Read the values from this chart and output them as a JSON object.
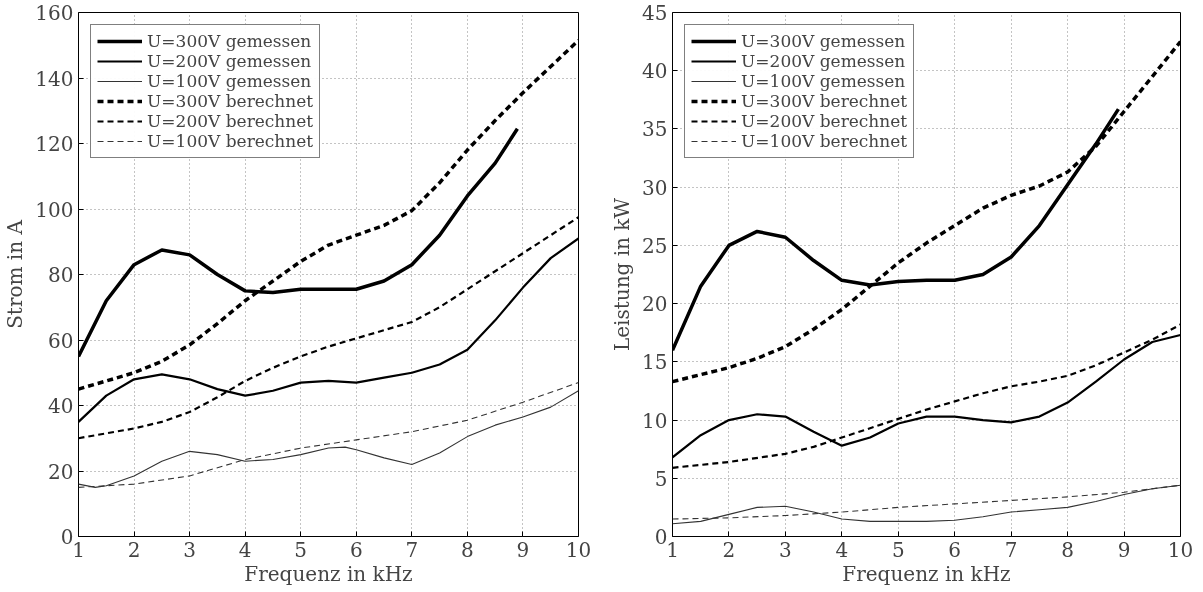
{
  "chart_data": [
    {
      "type": "line",
      "xlabel": "Frequenz in kHz",
      "ylabel": "Strom in A",
      "xlim": [
        1,
        10
      ],
      "ylim": [
        0,
        160
      ],
      "xticks": [
        1,
        2,
        3,
        4,
        5,
        6,
        7,
        8,
        9,
        10
      ],
      "yticks": [
        0,
        20,
        40,
        60,
        80,
        100,
        120,
        140,
        160
      ],
      "grid": true,
      "legend": "top left",
      "marker": "none",
      "series": [
        {
          "name": "U=300V gemessen",
          "color": "#000000",
          "line_style": "solid",
          "x": [
            1,
            1.5,
            2,
            2.5,
            3,
            3.5,
            4,
            4.5,
            5,
            5.5,
            6,
            6.5,
            7,
            7.5,
            8,
            8.5,
            8.9
          ],
          "values": [
            55,
            72,
            83,
            87.5,
            86,
            80,
            75,
            74.5,
            75.5,
            75.5,
            75.5,
            78,
            83,
            92,
            104,
            114,
            124.5
          ]
        },
        {
          "name": "U=200V gemessen",
          "color": "#000000",
          "line_style": "solid",
          "x": [
            1,
            1.5,
            2,
            2.5,
            3,
            3.5,
            4,
            4.5,
            5,
            5.5,
            6,
            6.5,
            7,
            7.5,
            8,
            8.5,
            9,
            9.5,
            10
          ],
          "values": [
            35,
            43,
            48,
            49.5,
            48,
            45,
            43,
            44.5,
            47,
            47.5,
            47,
            48.5,
            50,
            52.5,
            57,
            66,
            76,
            85,
            91
          ]
        },
        {
          "name": "U=100V gemessen",
          "color": "#333333",
          "line_style": "solid",
          "x": [
            1,
            1.3,
            1.5,
            2,
            2.5,
            3,
            3.5,
            4,
            4.5,
            5,
            5.5,
            5.8,
            6,
            6.5,
            7,
            7.5,
            8,
            8.5,
            9,
            9.5,
            10
          ],
          "values": [
            16,
            15,
            15.5,
            18.5,
            23,
            26,
            25,
            23,
            23.5,
            25,
            27,
            27.3,
            26.5,
            24,
            22,
            25.5,
            30.5,
            34,
            36.5,
            39.5,
            44.5
          ]
        },
        {
          "name": "U=300V berechnet",
          "color": "#000000",
          "line_style": "dashed",
          "x": [
            1,
            1.5,
            2,
            2.5,
            3,
            3.5,
            4,
            4.5,
            5,
            5.5,
            6,
            6.5,
            7,
            7.5,
            8,
            8.5,
            9,
            9.5,
            10
          ],
          "values": [
            45,
            47.5,
            50,
            53.5,
            58.5,
            65,
            72,
            78,
            84,
            89,
            92,
            95,
            99.5,
            108,
            118,
            127,
            135.5,
            143.5,
            151.5
          ]
        },
        {
          "name": "U=200V berechnet",
          "color": "#000000",
          "line_style": "dashed",
          "x": [
            1,
            1.5,
            2,
            2.5,
            3,
            3.5,
            4,
            4.5,
            5,
            5.5,
            6,
            6.5,
            7,
            7.5,
            8,
            8.5,
            9,
            9.5,
            10
          ],
          "values": [
            30,
            31.5,
            33,
            35,
            38,
            42.5,
            47.5,
            51.5,
            55,
            58,
            60.5,
            63,
            65.5,
            70,
            75.5,
            81,
            86.5,
            92,
            97.5
          ]
        },
        {
          "name": "U=100V berechnet",
          "color": "#333333",
          "line_style": "dashed",
          "x": [
            1,
            2,
            3,
            4,
            5,
            6,
            7,
            8,
            9,
            10
          ],
          "values": [
            15,
            16,
            18.5,
            23.5,
            27,
            29.5,
            32,
            35.5,
            41,
            47
          ]
        }
      ]
    },
    {
      "type": "line",
      "xlabel": "Frequenz in kHz",
      "ylabel": "Leistung in kW",
      "xlim": [
        1,
        10
      ],
      "ylim": [
        0,
        45
      ],
      "xticks": [
        1,
        2,
        3,
        4,
        5,
        6,
        7,
        8,
        9,
        10
      ],
      "yticks": [
        0,
        5,
        10,
        15,
        20,
        25,
        30,
        35,
        40,
        45
      ],
      "grid": true,
      "legend": "top left",
      "marker": "none",
      "series": [
        {
          "name": "U=300V gemessen",
          "color": "#000000",
          "line_style": "solid",
          "x": [
            1,
            1.5,
            2,
            2.5,
            3,
            3.5,
            4,
            4.5,
            5,
            5.5,
            6,
            6.5,
            7,
            7.5,
            8,
            8.5,
            8.9
          ],
          "values": [
            16,
            21.5,
            25,
            26.2,
            25.7,
            23.7,
            22,
            21.6,
            21.9,
            22,
            22,
            22.5,
            24,
            26.7,
            30.2,
            33.7,
            36.7
          ]
        },
        {
          "name": "U=200V gemessen",
          "color": "#000000",
          "line_style": "solid",
          "x": [
            1,
            1.5,
            2,
            2.5,
            3,
            3.5,
            4,
            4.5,
            5,
            5.5,
            6,
            6.5,
            7,
            7.5,
            8,
            8.5,
            9,
            9.5,
            10
          ],
          "values": [
            6.8,
            8.7,
            10,
            10.5,
            10.3,
            9,
            7.8,
            8.5,
            9.7,
            10.3,
            10.3,
            10,
            9.8,
            10.3,
            11.5,
            13.3,
            15.2,
            16.7,
            17.3
          ]
        },
        {
          "name": "U=100V gemessen",
          "color": "#333333",
          "line_style": "solid",
          "x": [
            1,
            1.5,
            2,
            2.5,
            3,
            3.5,
            4,
            4.5,
            5,
            5.5,
            6,
            6.5,
            7,
            7.5,
            8,
            8.5,
            9,
            9.5,
            10
          ],
          "values": [
            1.1,
            1.3,
            1.9,
            2.5,
            2.6,
            2.1,
            1.5,
            1.3,
            1.3,
            1.3,
            1.4,
            1.7,
            2.1,
            2.3,
            2.5,
            3.0,
            3.6,
            4.1,
            4.4
          ]
        },
        {
          "name": "U=300V berechnet",
          "color": "#000000",
          "line_style": "dashed",
          "x": [
            1,
            1.5,
            2,
            2.5,
            3,
            3.5,
            4,
            4.5,
            5,
            5.5,
            6,
            6.5,
            7,
            7.5,
            8,
            8.5,
            9,
            9.5,
            10
          ],
          "values": [
            13.3,
            13.9,
            14.5,
            15.3,
            16.3,
            17.8,
            19.5,
            21.5,
            23.5,
            25.2,
            26.7,
            28.2,
            29.3,
            30.1,
            31.3,
            33.5,
            36.5,
            39.5,
            42.5
          ]
        },
        {
          "name": "U=200V berechnet",
          "color": "#000000",
          "line_style": "dashed",
          "x": [
            1,
            2,
            3,
            3.5,
            4,
            4.5,
            5,
            5.5,
            6,
            6.5,
            7,
            7.5,
            8,
            8.5,
            9,
            9.5,
            10
          ],
          "values": [
            5.9,
            6.4,
            7.1,
            7.7,
            8.5,
            9.3,
            10.1,
            10.9,
            11.6,
            12.3,
            12.9,
            13.3,
            13.8,
            14.7,
            15.8,
            16.9,
            18.2
          ]
        },
        {
          "name": "U=100V berechnet",
          "color": "#333333",
          "line_style": "dashed",
          "x": [
            1,
            2,
            3,
            4,
            5,
            6,
            7,
            8,
            9,
            10
          ],
          "values": [
            1.5,
            1.6,
            1.8,
            2.1,
            2.5,
            2.8,
            3.1,
            3.4,
            3.8,
            4.4
          ]
        }
      ]
    }
  ]
}
